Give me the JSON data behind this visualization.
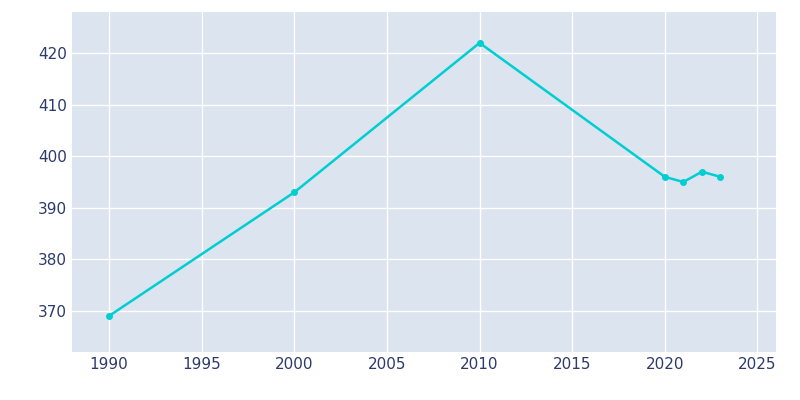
{
  "years": [
    1990,
    2000,
    2010,
    2020,
    2021,
    2022,
    2023
  ],
  "population": [
    369,
    393,
    422,
    396,
    395,
    397,
    396
  ],
  "line_color": "#00CED1",
  "marker_color": "#00CED1",
  "background_color": "#dce4f0",
  "fig_background_color": "#ffffff",
  "grid_color": "#ffffff",
  "xlim": [
    1988,
    2026
  ],
  "ylim": [
    362,
    428
  ],
  "xticks": [
    1990,
    1995,
    2000,
    2005,
    2010,
    2015,
    2020,
    2025
  ],
  "yticks": [
    370,
    380,
    390,
    400,
    410,
    420
  ],
  "tick_label_color": "#2d3a6b",
  "tick_fontsize": 11,
  "figsize": [
    8.0,
    4.0
  ],
  "dpi": 100
}
